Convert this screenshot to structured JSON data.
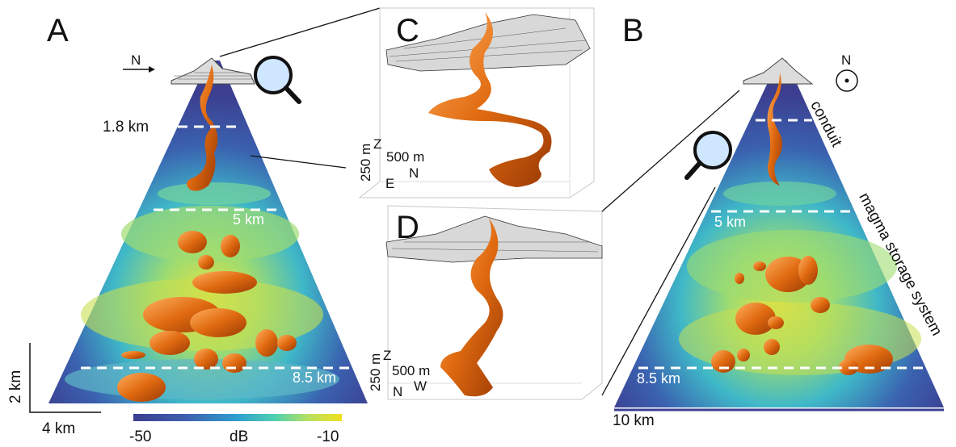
{
  "panels": {
    "a": "A",
    "b": "B",
    "c": "C",
    "d": "D"
  },
  "panel_a": {
    "north_label": "N",
    "depth_1": "1.8 km",
    "depth_2": "5 km",
    "depth_3": "8.5 km",
    "scale_vertical": "2 km",
    "scale_horizontal": "4 km"
  },
  "panel_b": {
    "north_label": "N",
    "label_conduit": "conduit",
    "label_storage": "magma storage system",
    "depth_1": "5 km",
    "depth_2": "8.5 km",
    "scale_horizontal": "10 km"
  },
  "panel_c": {
    "z_label": "Z",
    "scale_z": "250 m",
    "scale_h": "500 m",
    "axis_1": "N",
    "axis_2": "E"
  },
  "panel_d": {
    "z_label": "Z",
    "scale_z": "250 m",
    "scale_h": "500 m",
    "axis_1": "N",
    "axis_2": "W"
  },
  "colorbar": {
    "min": "-50",
    "unit": "dB",
    "max": "-10",
    "colors": [
      "#3b3f8f",
      "#3f5fb0",
      "#2e9fd0",
      "#4fd0b0",
      "#b8e060",
      "#f0e020"
    ]
  },
  "icons": [
    "magnifier-icon",
    "north-arrow-icon",
    "north-up-compass-icon"
  ]
}
